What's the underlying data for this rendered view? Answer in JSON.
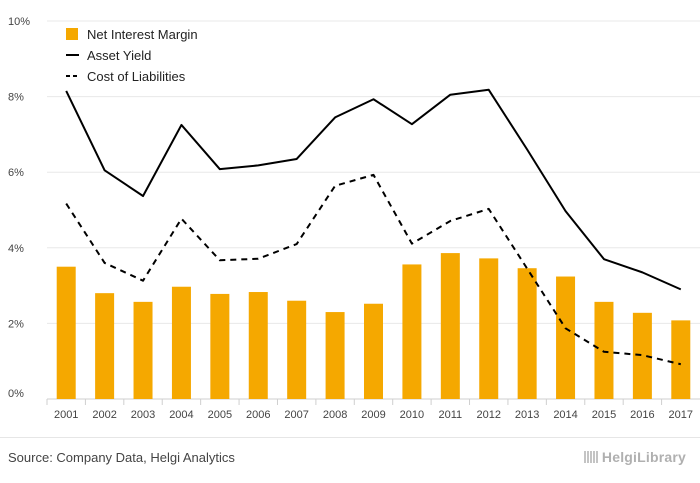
{
  "chart_data": {
    "type": "bar",
    "categories": [
      "2001",
      "2002",
      "2003",
      "2004",
      "2005",
      "2006",
      "2007",
      "2008",
      "2009",
      "2010",
      "2011",
      "2012",
      "2013",
      "2014",
      "2015",
      "2016",
      "2017"
    ],
    "series": [
      {
        "name": "Net Interest Margin",
        "kind": "bar",
        "color": "#f5a800",
        "values": [
          3.5,
          2.8,
          2.57,
          2.97,
          2.78,
          2.83,
          2.6,
          2.3,
          2.52,
          3.56,
          3.86,
          3.72,
          3.46,
          3.24,
          2.57,
          2.28,
          2.08
        ]
      },
      {
        "name": "Asset Yield",
        "kind": "line",
        "style": "solid",
        "color": "#000000",
        "values": [
          8.15,
          6.05,
          5.37,
          7.25,
          6.08,
          6.18,
          6.35,
          7.45,
          7.93,
          7.27,
          8.05,
          8.18,
          6.6,
          4.97,
          3.7,
          3.35,
          2.9
        ]
      },
      {
        "name": "Cost of Liabilities",
        "kind": "line",
        "style": "dashed",
        "color": "#000000",
        "values": [
          5.17,
          3.6,
          3.13,
          4.77,
          3.67,
          3.71,
          4.1,
          5.64,
          5.93,
          4.11,
          4.71,
          5.03,
          3.45,
          1.87,
          1.25,
          1.16,
          0.92
        ]
      }
    ],
    "y_ticks": [
      "0%",
      "2%",
      "4%",
      "6%",
      "8%",
      "10%"
    ],
    "ylim": [
      0,
      10
    ],
    "grid": true,
    "legend_position": "top-left"
  },
  "footer": {
    "source": "Source: Company Data, Helgi Analytics",
    "brand": "HelgiLibrary"
  }
}
